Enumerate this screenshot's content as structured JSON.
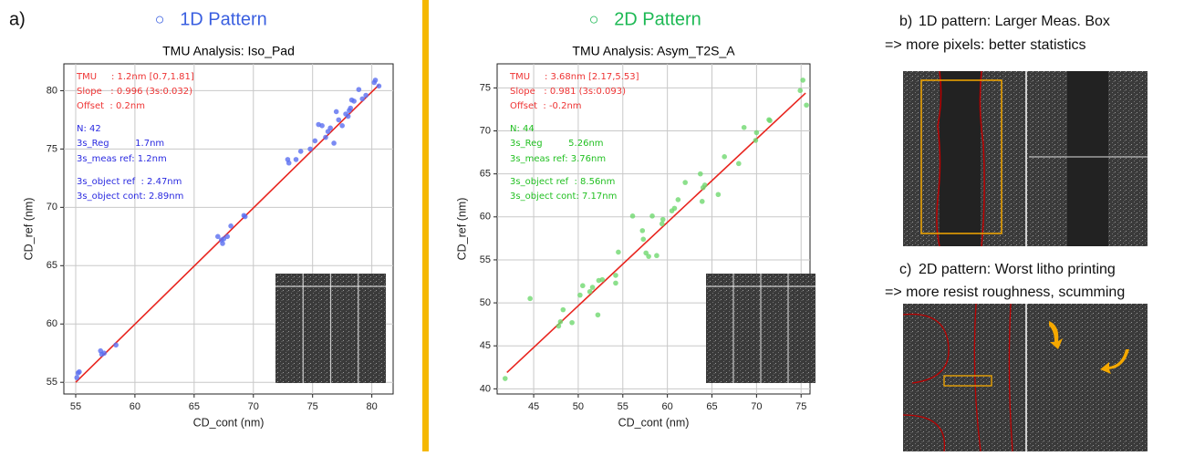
{
  "panel_label": "a)",
  "headers": [
    {
      "marker": "○",
      "text": "1D Pattern",
      "color": "#3a5fe0"
    },
    {
      "marker": "○",
      "text": "2D Pattern",
      "color": "#1db954"
    }
  ],
  "side": {
    "b_label": "b)",
    "b_line1": "1D pattern: Larger Meas. Box",
    "b_line2": "=>  more pixels: better statistics",
    "c_label": "c)",
    "c_line1": "2D pattern: Worst litho printing",
    "c_line2": "=> more resist roughness, scumming"
  },
  "chart_data": [
    {
      "type": "scatter",
      "title": "TMU Analysis: Iso_Pad",
      "x_label": "CD_cont (nm)",
      "y_label": "CD_ref (nm)",
      "xlim": [
        54.0,
        81.8
      ],
      "ylim": [
        54.0,
        82.3
      ],
      "xticks": [
        55,
        60,
        65,
        70,
        75,
        80
      ],
      "yticks": [
        55,
        60,
        65,
        70,
        75,
        80
      ],
      "grid": true,
      "point_color": "#5a6ef0",
      "x": [
        55.1,
        55.2,
        55.3,
        57.1,
        57.2,
        57.4,
        58.4,
        67.0,
        67.3,
        67.4,
        67.5,
        67.8,
        68.1,
        69.2,
        69.3,
        72.9,
        73.0,
        73.6,
        74.0,
        74.8,
        75.2,
        75.5,
        75.8,
        76.1,
        76.3,
        76.5,
        76.8,
        77.0,
        77.2,
        77.5,
        77.8,
        78.0,
        78.1,
        78.2,
        78.3,
        78.5,
        78.9,
        79.2,
        79.5,
        80.2,
        80.3,
        80.6
      ],
      "values": [
        55.4,
        55.8,
        55.9,
        57.7,
        57.4,
        57.5,
        58.2,
        67.5,
        67.2,
        66.9,
        67.3,
        67.5,
        68.4,
        69.3,
        69.2,
        74.1,
        73.8,
        74.1,
        74.8,
        75.0,
        75.7,
        77.1,
        77.0,
        76.0,
        76.5,
        76.8,
        75.5,
        78.2,
        77.5,
        77.0,
        78.0,
        77.8,
        78.3,
        78.5,
        79.2,
        79.1,
        80.1,
        79.3,
        79.6,
        80.7,
        80.9,
        80.4
      ],
      "fit": {
        "color": "#e8251f",
        "x": [
          55.0,
          80.6
        ],
        "values": [
          55.0,
          80.5
        ]
      },
      "annotations": [
        {
          "text": "TMU     : 1.2nm [0.7,1.81]",
          "color": "#e33"
        },
        {
          "text": "Slope   : 0.996 (3s:0.032)",
          "color": "#e33"
        },
        {
          "text": "Offset  : 0.2nm",
          "color": "#e33"
        },
        {
          "text": "N: 42",
          "color": "#2a2ae0"
        },
        {
          "text": "3s_Reg         1.7nm",
          "color": "#2a2ae0"
        },
        {
          "text": "3s_meas ref: 1.2nm",
          "color": "#2a2ae0"
        },
        {
          "text": "3s_object ref  : 2.47nm",
          "color": "#2a2ae0"
        },
        {
          "text": "3s_object cont: 2.89nm",
          "color": "#2a2ae0"
        }
      ]
    },
    {
      "type": "scatter",
      "title": "TMU Analysis: Asym_T2S_A",
      "x_label": "CD_cont (nm)",
      "y_label": "CD_ref (nm)",
      "xlim": [
        40.9,
        76.0
      ],
      "ylim": [
        39.4,
        77.8
      ],
      "xticks": [
        45,
        50,
        55,
        60,
        65,
        70,
        75
      ],
      "yticks": [
        40,
        45,
        50,
        55,
        60,
        65,
        70,
        75
      ],
      "grid": true,
      "point_color": "#6fd86f",
      "x": [
        41.8,
        44.6,
        47.8,
        48.0,
        48.3,
        49.3,
        50.2,
        50.5,
        51.3,
        51.6,
        52.2,
        52.3,
        52.7,
        54.2,
        54.2,
        54.5,
        56.1,
        57.2,
        57.3,
        57.6,
        57.9,
        58.3,
        58.8,
        59.4,
        59.5,
        60.5,
        60.8,
        61.2,
        62.0,
        63.7,
        63.9,
        64.0,
        64.2,
        65.7,
        66.4,
        68.0,
        68.6,
        69.9,
        70.0,
        71.4,
        71.5,
        74.9,
        75.2,
        75.6
      ],
      "values": [
        41.2,
        50.5,
        47.3,
        47.8,
        49.2,
        47.7,
        50.9,
        52.0,
        51.3,
        51.8,
        48.6,
        52.6,
        52.7,
        53.2,
        52.3,
        55.9,
        60.1,
        58.4,
        57.4,
        55.8,
        55.4,
        60.1,
        55.5,
        59.2,
        59.7,
        60.7,
        61.0,
        62.0,
        64.0,
        65.0,
        61.8,
        63.4,
        63.7,
        62.6,
        67.0,
        66.2,
        70.4,
        68.9,
        69.8,
        71.3,
        71.2,
        74.7,
        75.9,
        73.0
      ],
      "fit": {
        "color": "#e8251f",
        "x": [
          42.0,
          75.5
        ],
        "values": [
          41.9,
          74.4
        ]
      },
      "annotations": [
        {
          "text": "TMU     : 3.68nm [2.17,5.53]",
          "color": "#e33"
        },
        {
          "text": "Slope   : 0.981 (3s:0.093)",
          "color": "#e33"
        },
        {
          "text": "Offset  : -0.2nm",
          "color": "#e33"
        },
        {
          "text": "N: 44",
          "color": "#22c022"
        },
        {
          "text": "3s_Reg         5.26nm",
          "color": "#22c022"
        },
        {
          "text": "3s_meas ref: 3.76nm",
          "color": "#22c022"
        },
        {
          "text": "3s_object ref  : 8.56nm",
          "color": "#22c022"
        },
        {
          "text": "3s_object cont: 7.17nm",
          "color": "#22c022"
        }
      ]
    }
  ]
}
